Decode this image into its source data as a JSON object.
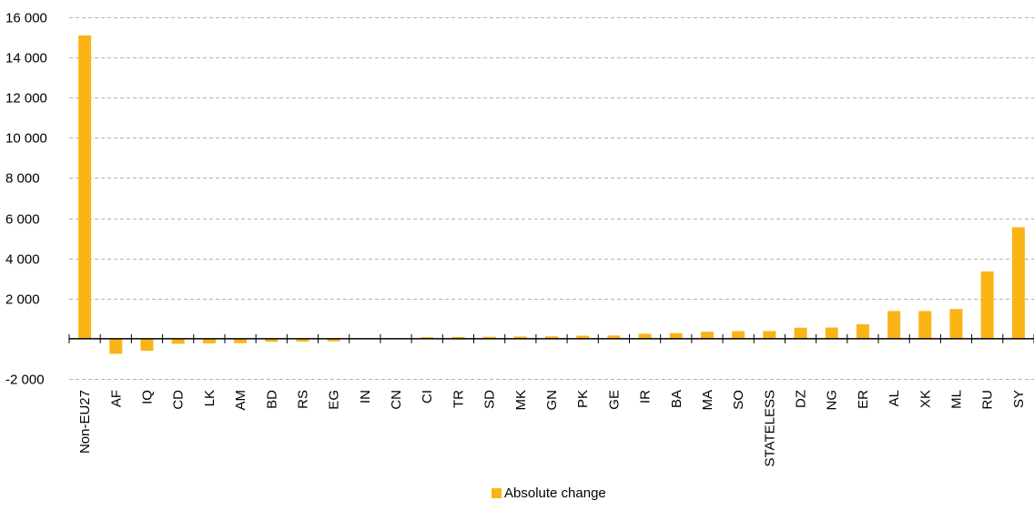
{
  "chart_data": {
    "type": "bar",
    "categories": [
      "Non-EU27",
      "AF",
      "IQ",
      "CD",
      "LK",
      "AM",
      "BD",
      "RS",
      "EG",
      "IN",
      "CN",
      "CI",
      "TR",
      "SD",
      "MK",
      "GN",
      "PK",
      "GE",
      "IR",
      "BA",
      "MA",
      "SO",
      "STATELESS",
      "DZ",
      "NG",
      "ER",
      "AL",
      "XK",
      "ML",
      "RU",
      "SY"
    ],
    "series": [
      {
        "name": "Absolute change",
        "color": "#FBB416",
        "values": [
          15100,
          -750,
          -600,
          -250,
          -230,
          -220,
          -150,
          -140,
          -130,
          0,
          0,
          80,
          90,
          100,
          110,
          120,
          150,
          160,
          250,
          280,
          350,
          380,
          380,
          550,
          560,
          720,
          1380,
          1380,
          1480,
          3350,
          5550
        ]
      }
    ],
    "ylim": [
      -2000,
      16000
    ],
    "yticks": [
      -2000,
      2000,
      4000,
      6000,
      8000,
      10000,
      12000,
      14000,
      16000
    ],
    "ytick_labels": [
      "-2 000",
      "2 000",
      "4 000",
      "6 000",
      "8 000",
      "10 000",
      "12 000",
      "14 000",
      "16 000"
    ],
    "grid": true,
    "legend_position": "bottom-center",
    "legend": "Absolute change",
    "title": "",
    "xlabel": "",
    "ylabel": ""
  }
}
